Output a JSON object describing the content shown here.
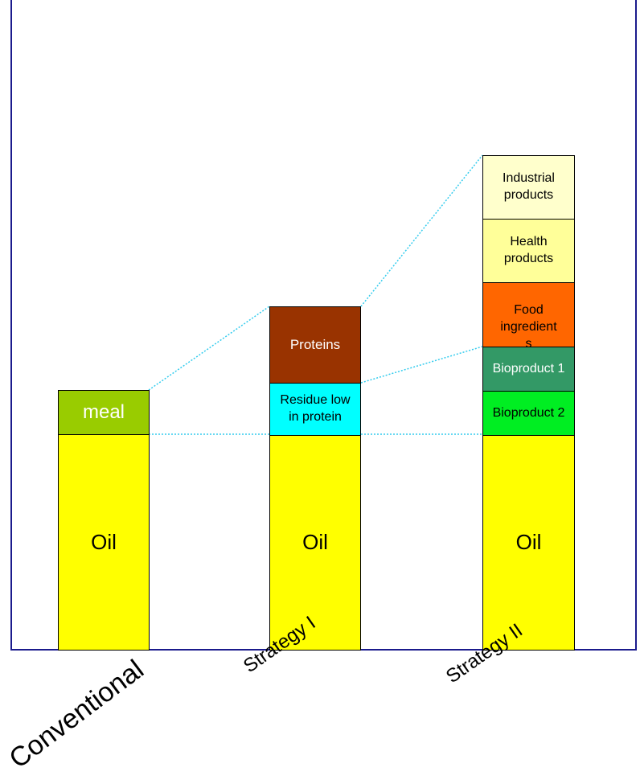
{
  "columns": [
    {
      "category": "Conventional",
      "segments": [
        {
          "label": "Oil",
          "color": "#ffff00"
        },
        {
          "label": "meal",
          "color": "#99cc00"
        }
      ]
    },
    {
      "category": "Strategy I",
      "segments": [
        {
          "label": "Oil",
          "color": "#ffff00"
        },
        {
          "label": "Residue low\nin protein",
          "color": "#00ffff"
        },
        {
          "label": "Proteins",
          "color": "#993300"
        }
      ]
    },
    {
      "category": "Strategy II",
      "segments": [
        {
          "label": "Oil",
          "color": "#ffff00"
        },
        {
          "label": "Bioproduct 2",
          "color": "#00ee22"
        },
        {
          "label": "Bioproduct 1",
          "color": "#339966"
        },
        {
          "label": "Food\ningredient\ns",
          "color": "#ff6600"
        },
        {
          "label": "Health\nproducts",
          "color": "#ffff99"
        },
        {
          "label": "Industrial\nproducts",
          "color": "#ffffcc"
        }
      ]
    }
  ],
  "colors": {
    "frame": "#1a1a8c",
    "guide_lines": "#33ccee"
  }
}
